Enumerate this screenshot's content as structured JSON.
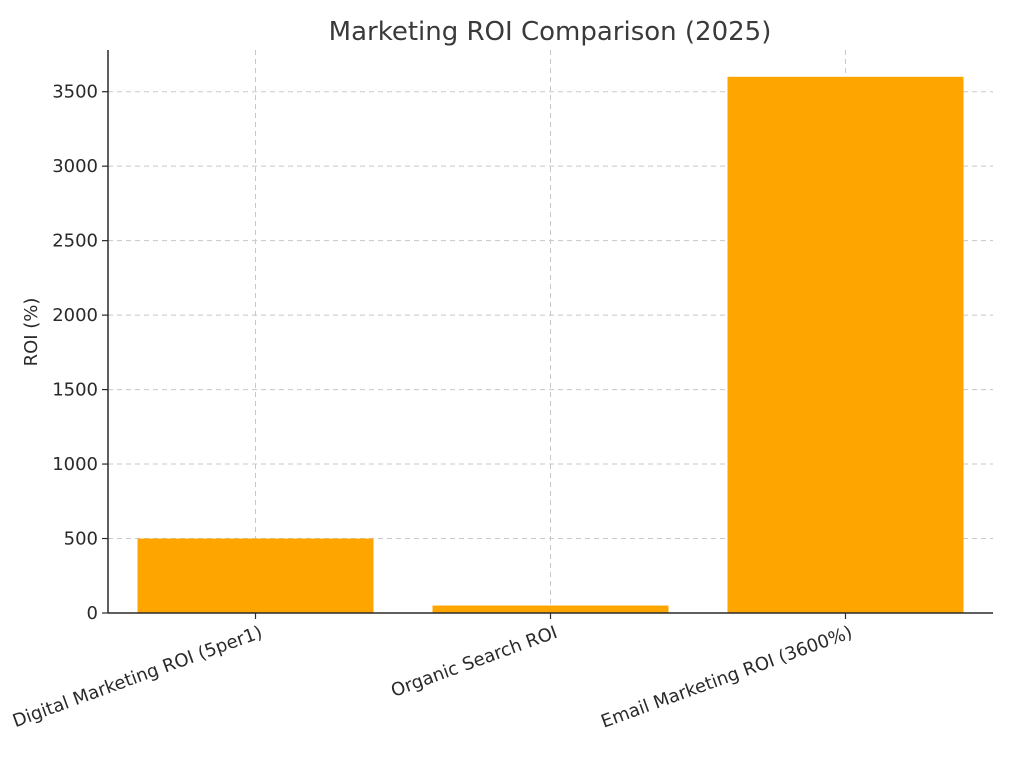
{
  "chart_data": {
    "type": "bar",
    "title": "Marketing ROI Comparison (2025)",
    "xlabel": "",
    "ylabel": "ROI (%)",
    "categories": [
      "Digital Marketing ROI (5per1)",
      "Organic Search ROI",
      "Email Marketing ROI (3600%)"
    ],
    "values": [
      500,
      50,
      3600
    ],
    "ylim": [
      0,
      3780
    ],
    "yticks": [
      0,
      500,
      1000,
      1500,
      2000,
      2500,
      3000,
      3500
    ],
    "grid": true,
    "bar_color": "#FFA500"
  }
}
